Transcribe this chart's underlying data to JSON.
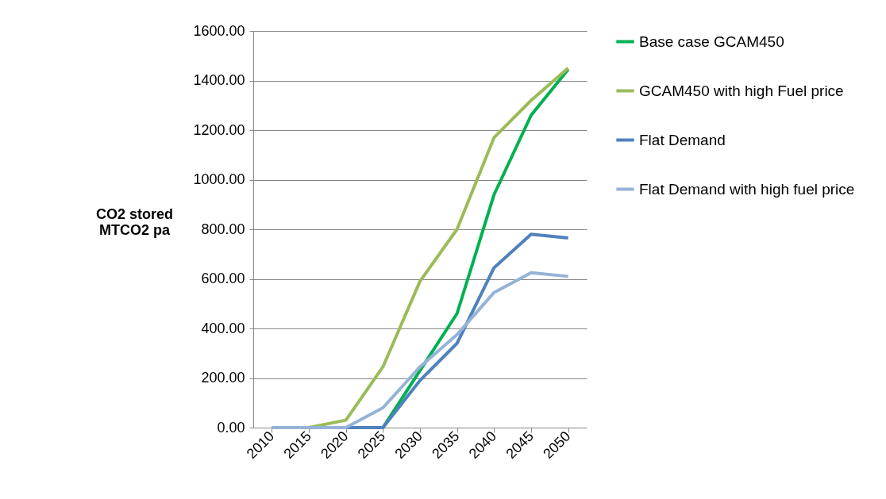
{
  "chart_data": {
    "type": "line",
    "ylabel": "CO2 stored\nMTCO2 pa",
    "categories": [
      "2010",
      "2015",
      "2020",
      "2025",
      "2030",
      "2035",
      "2040",
      "2045",
      "2050"
    ],
    "series": [
      {
        "name": "Base  case GCAM450",
        "color": "#00b050",
        "values": [
          null,
          null,
          0,
          0,
          230,
          460,
          940,
          1260,
          1445
        ]
      },
      {
        "name": "GCAM450 with high Fuel price",
        "color": "#9bbb59",
        "values": [
          0,
          0,
          30,
          245,
          590,
          800,
          1170,
          1320,
          1450
        ]
      },
      {
        "name": "Flat Demand",
        "color": "#4f81bd",
        "values": [
          0,
          0,
          0,
          0,
          190,
          340,
          645,
          780,
          765
        ]
      },
      {
        "name": "Flat Demand with high fuel price",
        "color": "#95b3d7",
        "values": [
          0,
          0,
          0,
          80,
          245,
          375,
          545,
          625,
          610
        ]
      }
    ],
    "ylim": [
      0,
      1600
    ],
    "yticks": [
      {
        "value": 0,
        "label": "0.00"
      },
      {
        "value": 200,
        "label": "200.00"
      },
      {
        "value": 400,
        "label": "400.00"
      },
      {
        "value": 600,
        "label": "600.00"
      },
      {
        "value": 800,
        "label": "800.00"
      },
      {
        "value": 1000,
        "label": "1000.00"
      },
      {
        "value": 1200,
        "label": "1200.00"
      },
      {
        "value": 1400,
        "label": "1400.00"
      },
      {
        "value": 1600,
        "label": "1600.00"
      }
    ],
    "grid": "y",
    "legend": "right",
    "marker": "none",
    "line_style": "solid"
  }
}
